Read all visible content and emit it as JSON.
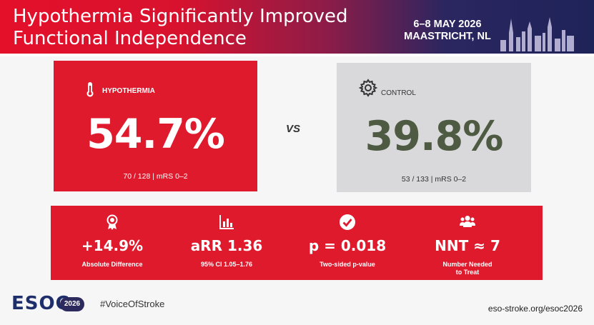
{
  "header": {
    "title": "Hypothermia Significantly Improved Functional Independence",
    "dates": "6–8 MAY 2026",
    "location": "MAASTRICHT, NL"
  },
  "hypothermia": {
    "label": "HYPOTHERMIA",
    "icon": "thermometer-icon",
    "value": "54.7%",
    "detail": "70 / 128  |  mRS 0–2",
    "color": "#e01a2d"
  },
  "vs_label": "VS",
  "control": {
    "label": "CONTROL",
    "icon": "gear-icon",
    "value": "39.8%",
    "detail": "53 / 133  |  mRS 0–2",
    "value_color": "#4e5a42"
  },
  "stats": [
    {
      "icon": "ribbon-award-icon",
      "value": "+14.9%",
      "label": "Absolute Difference"
    },
    {
      "icon": "bar-chart-icon",
      "value": "aRR 1.36",
      "label": "95% CI 1.05–1.76"
    },
    {
      "icon": "check-circle-icon",
      "value": "p = 0.018",
      "label": "Two-sided p-value"
    },
    {
      "icon": "people-icon",
      "value": "NNT ≈ 7",
      "label": "Number Needed to Treat"
    }
  ],
  "footer": {
    "logo_text": "ESOC",
    "logo_year": "2026",
    "hashtag": "#VoiceOfStroke",
    "url": "eso-stroke.org/esoc2026"
  }
}
